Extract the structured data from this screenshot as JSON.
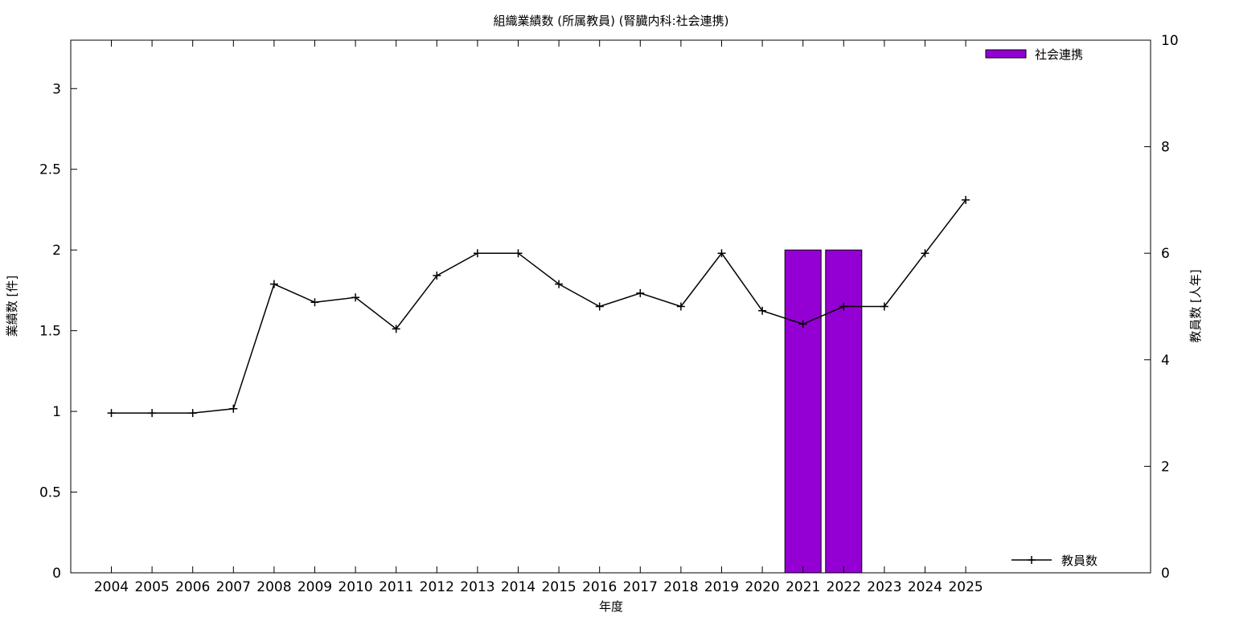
{
  "chart_data": {
    "type": "bar+line",
    "title": "組織業績数 (所属教員) (腎臓内科:社会連携)",
    "xlabel": "年度",
    "ylabel_left": "業績数 [件]",
    "ylabel_right": "教員数 [人年]",
    "categories": [
      "2004",
      "2005",
      "2006",
      "2007",
      "2008",
      "2009",
      "2010",
      "2011",
      "2012",
      "2013",
      "2014",
      "2015",
      "2016",
      "2017",
      "2018",
      "2019",
      "2020",
      "2021",
      "2022",
      "2023",
      "2024",
      "2025"
    ],
    "y_left": {
      "range": [
        0,
        3.3
      ],
      "ticks": [
        "0",
        "0.5",
        "1",
        "1.5",
        "2",
        "2.5",
        "3"
      ]
    },
    "y_right": {
      "range": [
        0,
        10
      ],
      "ticks": [
        "0",
        "2",
        "4",
        "6",
        "8",
        "10"
      ]
    },
    "bar_series": {
      "name": "社会連携",
      "color": "#9400d3",
      "axis": "left",
      "values": [
        0,
        0,
        0,
        0,
        0,
        0,
        0,
        0,
        0,
        0,
        0,
        0,
        0,
        0,
        0,
        0,
        0,
        2,
        2,
        0,
        0,
        0
      ]
    },
    "line_series": {
      "name": "教員数",
      "color": "#000000",
      "axis": "right",
      "marker": "plus",
      "values": [
        3.0,
        3.0,
        3.0,
        3.08,
        5.42,
        5.08,
        5.17,
        4.58,
        5.58,
        6.0,
        6.0,
        5.42,
        5.0,
        5.25,
        5.0,
        6.0,
        4.92,
        4.67,
        5.0,
        5.0,
        6.0,
        7.0
      ]
    },
    "legend": {
      "bar_position": "top-right",
      "line_position": "bottom-right"
    },
    "grid": false
  }
}
